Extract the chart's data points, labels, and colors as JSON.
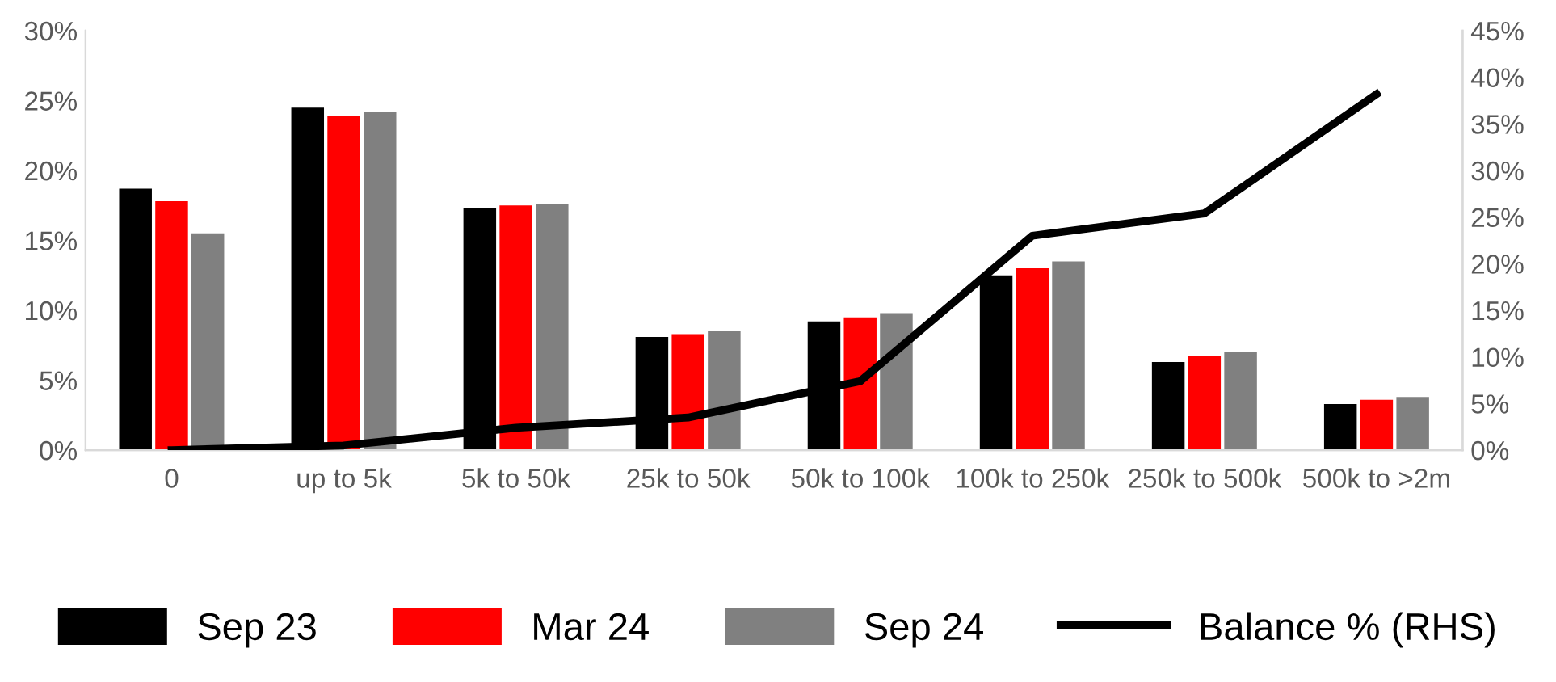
{
  "chart_data": {
    "type": "bar",
    "categories": [
      "0",
      "up to 5k",
      "5k to 50k",
      "25k to 50k",
      "50k to 100k",
      "100k to 250k",
      "250k to 500k",
      "500k to >2m"
    ],
    "series": [
      {
        "name": "Sep 23",
        "color": "#000000",
        "values": [
          18.7,
          24.5,
          17.3,
          8.1,
          9.2,
          12.5,
          6.3,
          3.3
        ]
      },
      {
        "name": "Mar 24",
        "color": "#ff0000",
        "values": [
          17.8,
          23.9,
          17.5,
          8.3,
          9.5,
          13.0,
          6.7,
          3.6
        ]
      },
      {
        "name": "Sep 24",
        "color": "#808080",
        "values": [
          15.5,
          24.2,
          17.6,
          8.5,
          9.8,
          13.5,
          7.0,
          3.8
        ]
      },
      {
        "name": "Balance % (RHS)",
        "type": "line",
        "axis": "y2",
        "color": "#000000",
        "values": [
          0,
          0.5,
          2.4,
          3.5,
          7.4,
          23.0,
          25.4,
          38.2
        ]
      }
    ],
    "ylim": [
      0,
      30
    ],
    "yticks": [
      {
        "value": 0,
        "label": "0%"
      },
      {
        "value": 5,
        "label": "5%"
      },
      {
        "value": 10,
        "label": "10%"
      },
      {
        "value": 15,
        "label": "15%"
      },
      {
        "value": 20,
        "label": "20%"
      },
      {
        "value": 25,
        "label": "25%"
      },
      {
        "value": 30,
        "label": "30%"
      }
    ],
    "y2lim": [
      0,
      45
    ],
    "y2ticks": [
      {
        "value": 0,
        "label": "0%"
      },
      {
        "value": 5,
        "label": "5%"
      },
      {
        "value": 10,
        "label": "10%"
      },
      {
        "value": 15,
        "label": "15%"
      },
      {
        "value": 20,
        "label": "20%"
      },
      {
        "value": 25,
        "label": "25%"
      },
      {
        "value": 30,
        "label": "30%"
      },
      {
        "value": 35,
        "label": "35%"
      },
      {
        "value": 40,
        "label": "40%"
      },
      {
        "value": 45,
        "label": "45%"
      }
    ],
    "grid": false,
    "legend": "bottom",
    "marker": "none",
    "line_style": "solid"
  }
}
